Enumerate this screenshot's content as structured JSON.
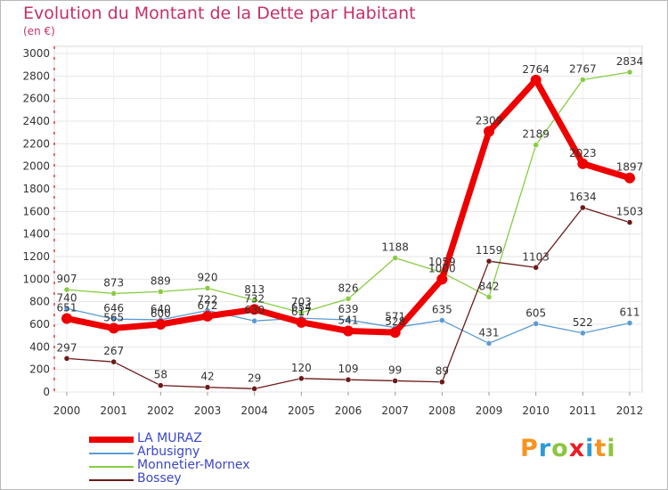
{
  "title": "Evolution du Montant de la Dette par Habitant",
  "unit": "(en €)",
  "logo": "Proxiti",
  "chart_data": {
    "type": "line",
    "title": "Evolution du Montant de la Dette par Habitant",
    "ylabel": "(en €)",
    "x": [
      "2000",
      "2001",
      "2002",
      "2003",
      "2004",
      "2005",
      "2006",
      "2007",
      "2008",
      "2009",
      "2010",
      "2011",
      "2012"
    ],
    "ylim": [
      0,
      3000
    ],
    "yticks": [
      0,
      200,
      400,
      600,
      800,
      1000,
      1200,
      1400,
      1600,
      1800,
      2000,
      2200,
      2400,
      2600,
      2800,
      3000
    ],
    "grid": true,
    "legend_position": "bottom-left",
    "series": [
      {
        "name": "LA MURAZ",
        "color": "#ee0000",
        "values": [
          651,
          565,
          600,
          672,
          732,
          617,
          541,
          528,
          1000,
          2309,
          2764,
          2023,
          1897
        ],
        "labels": [
          "651",
          "565",
          "600",
          "672",
          "732",
          "617",
          "541",
          "528",
          "1000",
          "2309",
          "2764",
          "2023",
          "1897"
        ]
      },
      {
        "name": "Arbusigny",
        "color": "#5b9bd5",
        "values": [
          740,
          646,
          640,
          722,
          630,
          654,
          639,
          571,
          635,
          431,
          605,
          522,
          611
        ],
        "labels": [
          "740",
          "646",
          "640",
          "722",
          "630",
          "654",
          "639",
          "571",
          "635",
          "431",
          "605",
          "522",
          "611"
        ]
      },
      {
        "name": "Monnetier-Mornex",
        "color": "#88cc44",
        "values": [
          907,
          873,
          889,
          920,
          813,
          703,
          826,
          1188,
          1059,
          842,
          2189,
          2767,
          2834
        ],
        "labels": [
          "907",
          "873",
          "889",
          "920",
          "813",
          "703",
          "826",
          "1188",
          "1059",
          "842",
          "2189",
          "2767",
          "2834"
        ]
      },
      {
        "name": "Bossey",
        "color": "#6b1a1a",
        "values": [
          297,
          267,
          58,
          42,
          29,
          120,
          109,
          99,
          89,
          1159,
          1103,
          1634,
          1503
        ],
        "labels": [
          "297",
          "267",
          "58",
          "42",
          "29",
          "120",
          "109",
          "99",
          "89",
          "1159",
          "1103",
          "1634",
          "1503"
        ]
      }
    ]
  }
}
